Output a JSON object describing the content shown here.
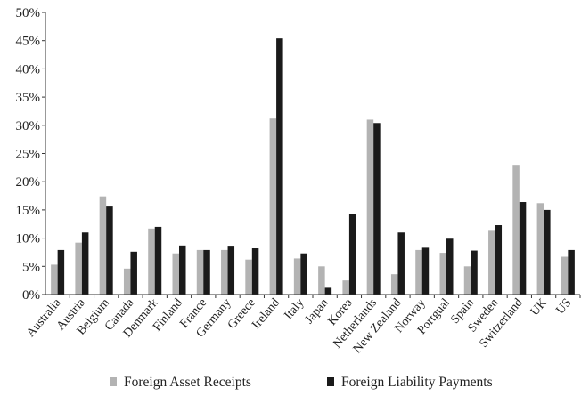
{
  "chart_data": {
    "type": "bar",
    "title": "",
    "xlabel": "",
    "ylabel": "",
    "ylim": [
      0,
      50
    ],
    "yticks": [
      "0%",
      "5%",
      "10%",
      "15%",
      "20%",
      "25%",
      "30%",
      "35%",
      "40%",
      "45%",
      "50%"
    ],
    "grid": false,
    "legend_position": "bottom",
    "categories": [
      "Australia",
      "Austria",
      "Belgium",
      "Canada",
      "Denmark",
      "Finland",
      "France",
      "Germany",
      "Greece",
      "Ireland",
      "Italy",
      "Japan",
      "Korea",
      "Netherlands",
      "New Zealand",
      "Norway",
      "Portgual",
      "Spain",
      "Sweden",
      "Switzerland",
      "UK",
      "US"
    ],
    "series": [
      {
        "name": "Foreign Asset Receipts",
        "color": "#b3b3b3",
        "values": [
          5.3,
          9.2,
          17.4,
          4.6,
          11.7,
          7.3,
          7.9,
          7.9,
          6.2,
          31.2,
          6.4,
          5.0,
          2.5,
          31.0,
          3.6,
          7.9,
          7.4,
          5.0,
          11.3,
          23.0,
          16.2,
          6.7
        ]
      },
      {
        "name": "Foreign Liability Payments",
        "color": "#1a1a1a",
        "values": [
          7.9,
          11.0,
          15.6,
          7.6,
          12.0,
          8.7,
          7.9,
          8.5,
          8.2,
          45.4,
          7.3,
          1.2,
          14.3,
          30.4,
          11.0,
          8.3,
          9.9,
          7.8,
          12.3,
          16.4,
          15.0,
          7.9
        ]
      }
    ]
  }
}
